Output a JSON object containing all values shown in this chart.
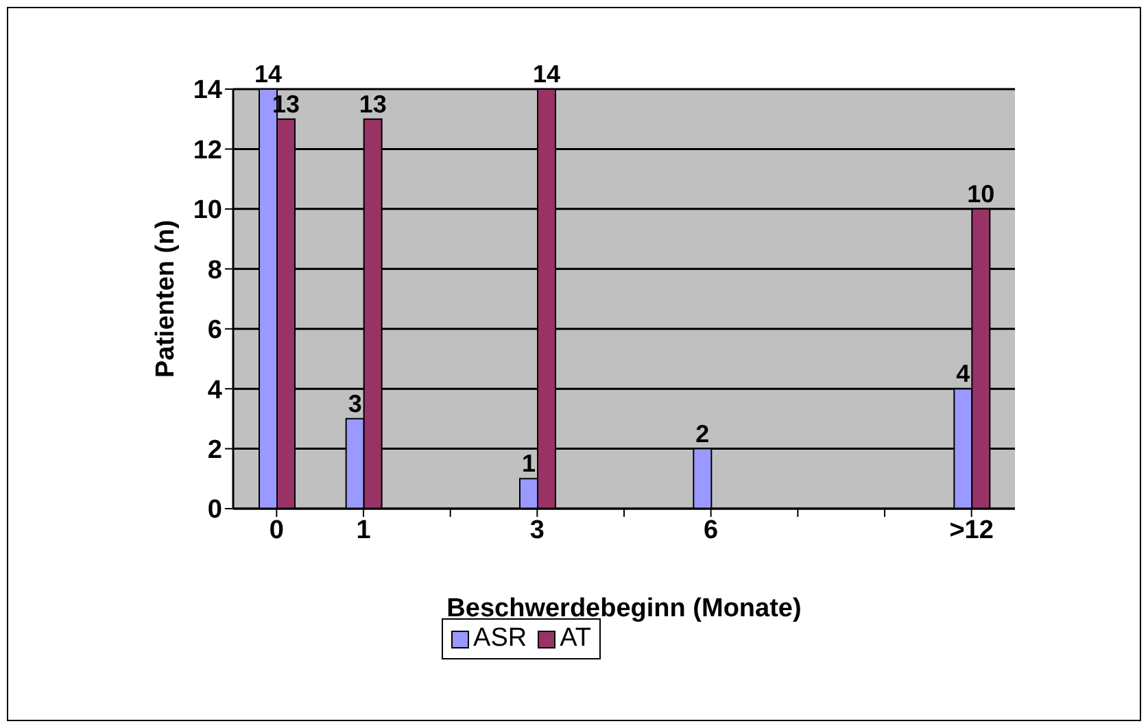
{
  "chart_data": {
    "type": "bar",
    "xlabel": "Beschwerdebeginn (Monate)",
    "ylabel": "Patienten (n)",
    "categories": [
      "0",
      "1",
      null,
      "3",
      null,
      "6",
      null,
      null,
      ">12"
    ],
    "series": [
      {
        "name": "ASR",
        "color": "#9999ff",
        "values": [
          14,
          3,
          null,
          1,
          null,
          2,
          null,
          null,
          4
        ]
      },
      {
        "name": "AT",
        "color": "#993366",
        "values": [
          13,
          13,
          null,
          14,
          null,
          null,
          null,
          null,
          10
        ]
      }
    ],
    "ylim": [
      0,
      14
    ],
    "yticks": [
      0,
      2,
      4,
      6,
      8,
      10,
      12,
      14
    ],
    "grid": "y",
    "legend": "bottom",
    "data_labels": true
  }
}
